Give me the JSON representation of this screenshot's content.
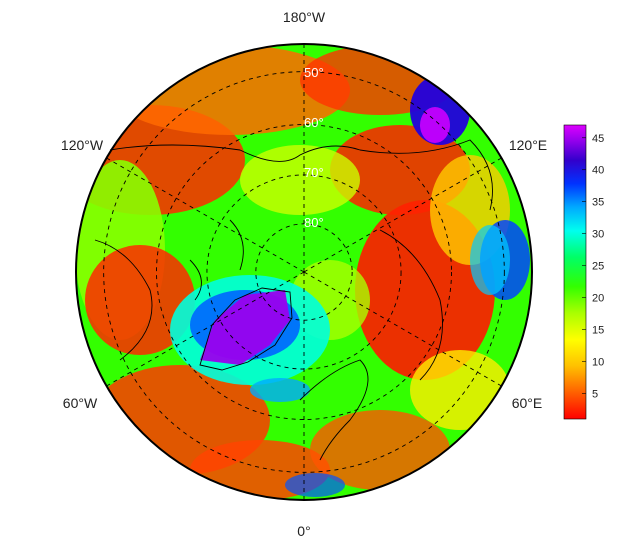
{
  "map": {
    "projection": "north polar stereographic",
    "longitude_labels": [
      "180°W",
      "120°W",
      "120°E",
      "60°W",
      "60°E",
      "0°"
    ],
    "latitude_labels": [
      "50°",
      "60°",
      "70°",
      "80°"
    ],
    "graticule": {
      "latitudes": [
        50,
        60,
        70,
        80
      ],
      "longitudes": [
        0,
        60,
        120,
        180,
        240,
        300
      ],
      "style": "dashed"
    }
  },
  "colorbar": {
    "ticks": [
      "5",
      "10",
      "15",
      "20",
      "25",
      "30",
      "35",
      "40",
      "45"
    ],
    "range": [
      1,
      47
    ],
    "colors": [
      "#ff0000",
      "#ff5a00",
      "#ffaa00",
      "#ffee00",
      "#ccff00",
      "#66ff00",
      "#00ff00",
      "#00ff88",
      "#00ffee",
      "#00aaff",
      "#0044ff",
      "#2200ee",
      "#7700dd",
      "#cc00ff"
    ]
  }
}
